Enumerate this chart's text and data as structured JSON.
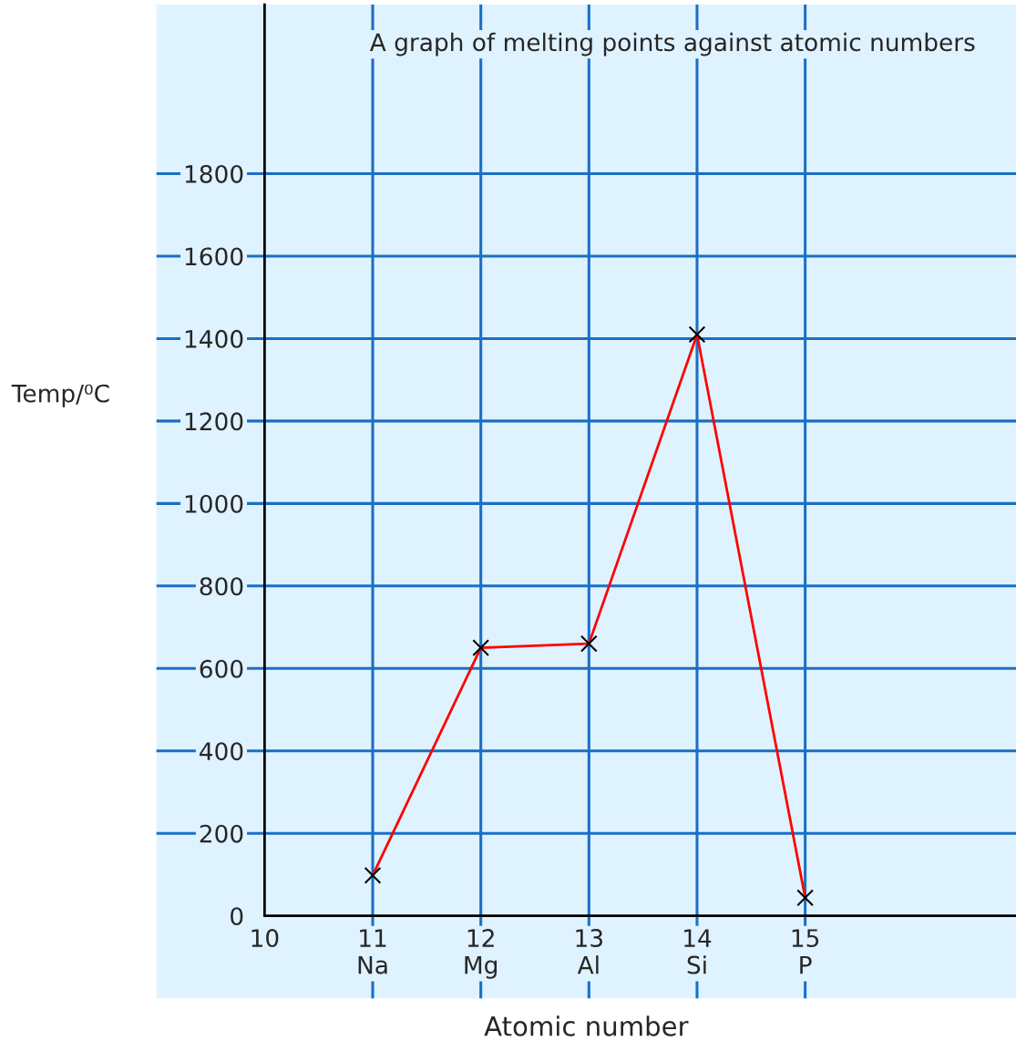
{
  "chart_data": {
    "type": "line",
    "title": "A graph of melting points against atomic numbers",
    "xlabel": "Atomic number",
    "ylabel": "Temp/⁰C",
    "x": [
      11,
      12,
      13,
      14,
      15
    ],
    "series": [
      {
        "color": "#ff0000",
        "values": [
          98,
          650,
          660,
          1410,
          44
        ]
      }
    ],
    "xlim": [
      9,
      16.95
    ],
    "ylim": [
      -200,
      2210
    ],
    "xticks": [
      10,
      {
        "value": 11,
        "label": "11\nNa"
      },
      {
        "value": 12,
        "label": "12\nMg"
      },
      {
        "value": 13,
        "label": "13\nAl"
      },
      {
        "value": 14,
        "label": "14\nSi"
      },
      {
        "value": 15,
        "label": "15\nP"
      }
    ],
    "yticks": [
      0,
      200,
      400,
      600,
      800,
      1000,
      1200,
      1400,
      1600,
      1800
    ],
    "grid": true,
    "marker": "cross",
    "line_style": "solid"
  }
}
